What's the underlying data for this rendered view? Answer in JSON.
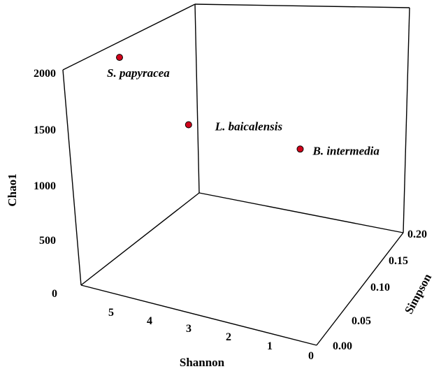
{
  "chart_data": {
    "type": "scatter",
    "title": "",
    "axes": {
      "x": {
        "label": "Shannon",
        "ticks": [
          "5",
          "4",
          "3",
          "2",
          "1",
          "0"
        ],
        "range": [
          0,
          6
        ]
      },
      "y": {
        "label": "Simpson",
        "ticks": [
          "0.00",
          "0.05",
          "0.10",
          "0.15",
          "0.20"
        ],
        "range": [
          0,
          0.2
        ]
      },
      "z": {
        "label": "Chao1",
        "ticks": [
          "0",
          "500",
          "1000",
          "1500",
          "2000"
        ],
        "range": [
          0,
          2000
        ]
      }
    },
    "points": [
      {
        "label": "S. papyracea",
        "shannon": 5.0,
        "simpson": 0.04,
        "chao1": 2000,
        "color": "#d0021b"
      },
      {
        "label": "L. baicalensis",
        "shannon": 3.6,
        "simpson": 0.06,
        "chao1": 1400,
        "color": "#d0021b"
      },
      {
        "label": "B. intermedia",
        "shannon": 2.0,
        "simpson": 0.16,
        "chao1": 800,
        "color": "#d0021b"
      }
    ],
    "grid": false,
    "legend": "none"
  }
}
